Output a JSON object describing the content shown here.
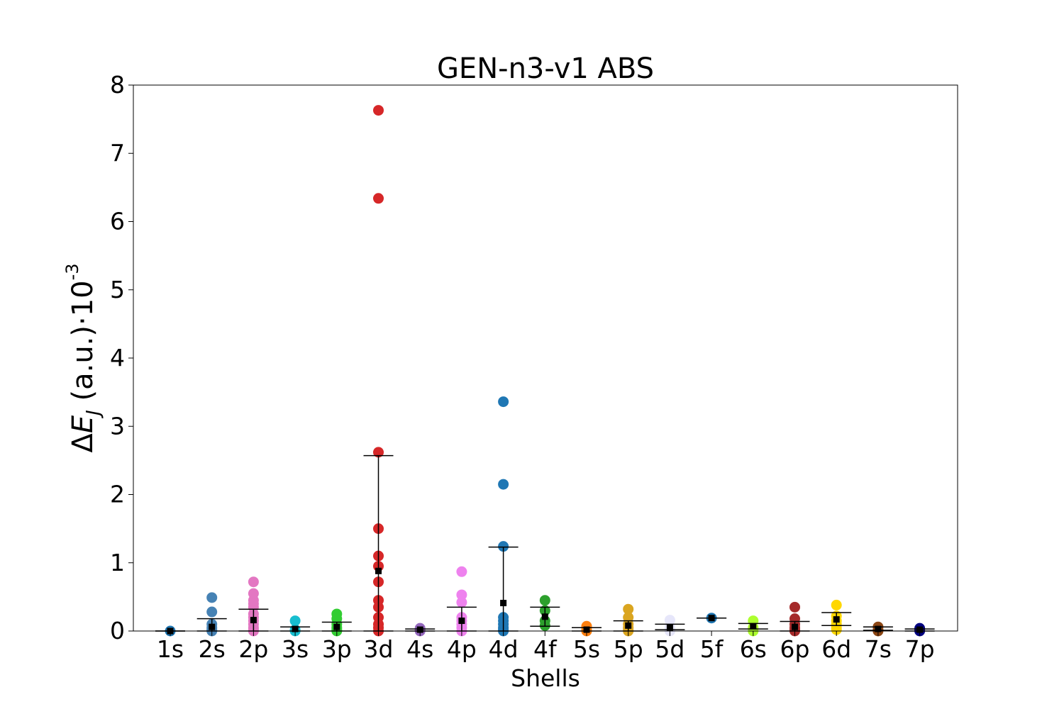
{
  "chart_data": {
    "type": "scatter",
    "title": "GEN-n3-v1 ABS",
    "xlabel": "Shells",
    "ylabel": {
      "delta": "Δ",
      "symbol": "E",
      "subscript": "J",
      "units": " (a.u.)·10",
      "exponent": "-3"
    },
    "ylim": [
      0,
      8
    ],
    "yticks": [
      "0",
      "1",
      "2",
      "3",
      "4",
      "5",
      "6",
      "7",
      "8"
    ],
    "grid": false,
    "legend": "none",
    "categories": [
      "1s",
      "2s",
      "2p",
      "3s",
      "3p",
      "3d",
      "4s",
      "4p",
      "4d",
      "4f",
      "5s",
      "5p",
      "5d",
      "5f",
      "6s",
      "6p",
      "6d",
      "7s",
      "7p"
    ],
    "series": [
      {
        "shell": "1s",
        "color": "#1f77b4",
        "points": [
          0.0
        ],
        "mean": 0.0,
        "err": [
          0.0,
          0.0
        ]
      },
      {
        "shell": "2s",
        "color": "#4682b4",
        "points": [
          0.0,
          0.02,
          0.05,
          0.1,
          0.28,
          0.49
        ],
        "mean": 0.06,
        "err": [
          0.0,
          0.18
        ]
      },
      {
        "shell": "2p",
        "color": "#e377c2",
        "points": [
          0.0,
          0.02,
          0.05,
          0.1,
          0.15,
          0.2,
          0.25,
          0.35,
          0.4,
          0.45,
          0.55,
          0.72
        ],
        "mean": 0.16,
        "err": [
          0.0,
          0.32
        ]
      },
      {
        "shell": "3s",
        "color": "#17becf",
        "points": [
          0.0,
          0.02,
          0.15
        ],
        "mean": 0.03,
        "err": [
          0.0,
          0.06
        ]
      },
      {
        "shell": "3p",
        "color": "#32cd32",
        "points": [
          0.0,
          0.02,
          0.05,
          0.1,
          0.18,
          0.25
        ],
        "mean": 0.06,
        "err": [
          0.0,
          0.13
        ]
      },
      {
        "shell": "3d",
        "color": "#d62728",
        "points": [
          0.0,
          0.05,
          0.1,
          0.2,
          0.35,
          0.45,
          0.72,
          0.95,
          1.1,
          1.5,
          2.62,
          6.34,
          7.63
        ],
        "mean": 0.88,
        "err": [
          0.0,
          2.57
        ]
      },
      {
        "shell": "4s",
        "color": "#9467bd",
        "points": [
          0.0,
          0.02,
          0.04
        ],
        "mean": 0.02,
        "err": [
          0.0,
          0.03
        ]
      },
      {
        "shell": "4p",
        "color": "#ee82ee",
        "points": [
          0.0,
          0.05,
          0.1,
          0.15,
          0.2,
          0.42,
          0.53,
          0.87
        ],
        "mean": 0.15,
        "err": [
          0.0,
          0.35
        ]
      },
      {
        "shell": "4d",
        "color": "#1f77b4",
        "points": [
          0.0,
          0.02,
          0.05,
          0.1,
          0.15,
          0.2,
          1.24,
          2.15,
          3.36
        ],
        "mean": 0.41,
        "err": [
          0.0,
          1.23
        ]
      },
      {
        "shell": "4f",
        "color": "#2ca02c",
        "points": [
          0.08,
          0.15,
          0.3,
          0.45
        ],
        "mean": 0.21,
        "err": [
          0.07,
          0.35
        ]
      },
      {
        "shell": "5s",
        "color": "#ff7f0e",
        "points": [
          0.0,
          0.02,
          0.07
        ],
        "mean": 0.02,
        "err": [
          0.0,
          0.05
        ]
      },
      {
        "shell": "5p",
        "color": "#daa520",
        "points": [
          0.0,
          0.02,
          0.05,
          0.1,
          0.2,
          0.32
        ],
        "mean": 0.08,
        "err": [
          0.0,
          0.15
        ]
      },
      {
        "shell": "5d",
        "color": "#e6e6fa",
        "points": [
          0.0,
          0.05,
          0.16
        ],
        "mean": 0.05,
        "err": [
          0.02,
          0.1
        ]
      },
      {
        "shell": "5f",
        "color": "#1f77b4",
        "points": [
          0.19
        ],
        "mean": 0.19,
        "err": [
          0.19,
          0.19
        ]
      },
      {
        "shell": "6s",
        "color": "#adff2f",
        "points": [
          0.0,
          0.05,
          0.15
        ],
        "mean": 0.07,
        "err": [
          0.03,
          0.11
        ]
      },
      {
        "shell": "6p",
        "color": "#a52a2a",
        "points": [
          0.0,
          0.02,
          0.05,
          0.1,
          0.18,
          0.35
        ],
        "mean": 0.06,
        "err": [
          0.0,
          0.14
        ]
      },
      {
        "shell": "6d",
        "color": "#ffd700",
        "points": [
          0.02,
          0.05,
          0.1,
          0.15,
          0.22,
          0.38
        ],
        "mean": 0.17,
        "err": [
          0.08,
          0.27
        ]
      },
      {
        "shell": "7s",
        "color": "#8b4513",
        "points": [
          0.0,
          0.02,
          0.06
        ],
        "mean": 0.03,
        "err": [
          0.01,
          0.06
        ]
      },
      {
        "shell": "7p",
        "color": "#000080",
        "points": [
          0.0,
          0.02,
          0.04
        ],
        "mean": 0.02,
        "err": [
          0.0,
          0.03
        ]
      }
    ]
  }
}
